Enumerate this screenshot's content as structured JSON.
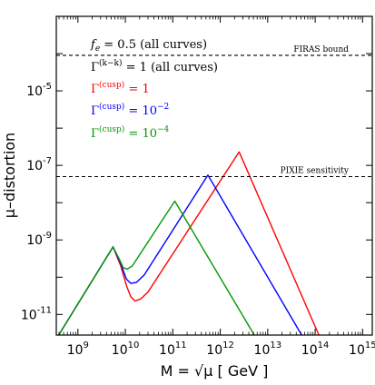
{
  "chart_data": {
    "type": "line",
    "xscale": "log",
    "yscale": "log",
    "xlim": [
      350000000.0,
      1600000000000000.0
    ],
    "ylim": [
      2.8e-12,
      0.001
    ],
    "xlabel": "M = √μ  [ GeV ]",
    "ylabel": "μ–distortion",
    "x_ticks": [
      {
        "exp": "9",
        "value": 1000000000.0
      },
      {
        "exp": "10",
        "value": 10000000000.0
      },
      {
        "exp": "11",
        "value": 100000000000.0
      },
      {
        "exp": "12",
        "value": 1000000000000.0
      },
      {
        "exp": "13",
        "value": 10000000000000.0
      },
      {
        "exp": "14",
        "value": 100000000000000.0
      },
      {
        "exp": "15",
        "value": 1000000000000000.0
      }
    ],
    "y_ticks": [
      {
        "exp": "-11",
        "value": 1e-11
      },
      {
        "exp": "-9",
        "value": 1e-09
      },
      {
        "exp": "-7",
        "value": 1e-07
      },
      {
        "exp": "-5",
        "value": 1e-05
      }
    ],
    "tick_base": "10",
    "reference_lines": [
      {
        "label": "FIRAS bound",
        "y": 9e-05,
        "style": "dashed"
      },
      {
        "label": "PIXIE sensitivity",
        "y": 5e-08,
        "style": "dashed"
      }
    ],
    "legend_placement": "top-left",
    "legend": [
      {
        "text": "fₑ = 0.5 (all curves)",
        "color": "#000000"
      },
      {
        "text": "Γ^(k−k) = 1 (all curves)",
        "color": "#000000"
      },
      {
        "text": "Γ^(cusp) = 1",
        "color": "#ff0000"
      },
      {
        "text": "Γ^(cusp) = 10⁻²",
        "color": "#0000ff"
      },
      {
        "text": "Γ^(cusp) = 10⁻⁴",
        "color": "#009900"
      }
    ],
    "series": [
      {
        "color": "#ff0000",
        "points": [
          [
            350000000.0,
            2.2e-12
          ],
          [
            5500000000.0,
            6.5e-10
          ],
          [
            8000000000.0,
            2e-10
          ],
          [
            10500000000.0,
            6e-11
          ],
          [
            13000000000.0,
            3e-11
          ],
          [
            16000000000.0,
            2.3e-11
          ],
          [
            21000000000.0,
            2.6e-11
          ],
          [
            30000000000.0,
            4e-11
          ],
          [
            2500000000000.0,
            2.3e-07
          ],
          [
            120000000000000.0,
            2.8e-12
          ]
        ]
      },
      {
        "color": "#0000ff",
        "points": [
          [
            350000000.0,
            2.2e-12
          ],
          [
            5500000000.0,
            6.5e-10
          ],
          [
            8000000000.0,
            2.3e-10
          ],
          [
            10500000000.0,
            9e-11
          ],
          [
            13000000000.0,
            6.8e-11
          ],
          [
            17000000000.0,
            7.2e-11
          ],
          [
            25000000000.0,
            1.15e-10
          ],
          [
            550000000000.0,
            5.5e-08
          ],
          [
            52000000000000.0,
            2.8e-12
          ]
        ]
      },
      {
        "color": "#009900",
        "points": [
          [
            350000000.0,
            2.2e-12
          ],
          [
            5500000000.0,
            6.5e-10
          ],
          [
            7500000000.0,
            3e-10
          ],
          [
            9000000000.0,
            1.8e-10
          ],
          [
            11000000000.0,
            1.65e-10
          ],
          [
            14000000000.0,
            2e-10
          ],
          [
            110000000000.0,
            1.1e-08
          ],
          [
            5200000000000.0,
            2.8e-12
          ]
        ]
      }
    ]
  }
}
